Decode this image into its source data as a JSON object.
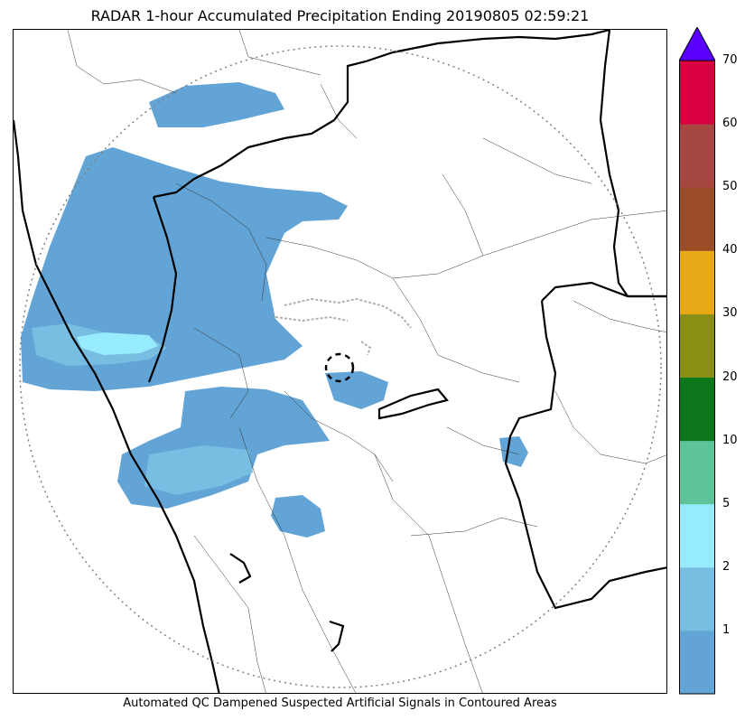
{
  "title": "RADAR 1-hour Accumulated Precipitation Ending 20190805 02:59:21",
  "footer": "Automated QC Dampened Suspected Artificial Signals in Contoured Areas",
  "colorbar": {
    "ticks": [
      "1",
      "2",
      "5",
      "10",
      "20",
      "30",
      "40",
      "50",
      "60",
      "70"
    ],
    "colors": [
      "#62a4d6",
      "#77bee2",
      "#96ecfd",
      "#5dc49a",
      "#0d771b",
      "#898f15",
      "#e8a917",
      "#9a4d26",
      "#a74741",
      "#d8003f"
    ],
    "extend_color": "#5a00ff"
  },
  "legend_colors": {
    "light_rain": "#62a4d6",
    "moderate_rain": "#77bee2",
    "heavy_rain": "#96ecfd",
    "qc_contour": "#b0b0b0"
  }
}
